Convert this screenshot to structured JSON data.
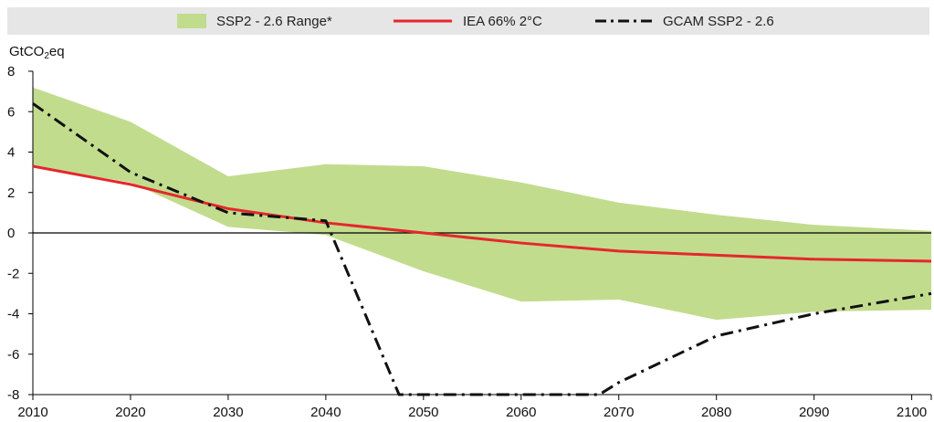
{
  "legend": {
    "range_label": "SSP2 - 2.6 Range*",
    "iea_label": "IEA 66% 2°C",
    "gcam_label": "GCAM SSP2 - 2.6"
  },
  "axis": {
    "ylabel_main": "GtCO",
    "ylabel_sub": "2",
    "ylabel_tail": "eq"
  },
  "colors": {
    "range": "#c2dc8e",
    "iea": "#e5272c",
    "gcam": "#111111",
    "legend_bg": "#e6e6e6"
  },
  "chart_data": {
    "type": "line",
    "title": "",
    "xlabel": "",
    "ylabel": "GtCO2eq",
    "xlim": [
      2010,
      2102
    ],
    "ylim": [
      -8,
      8
    ],
    "x_ticks": [
      2010,
      2020,
      2030,
      2040,
      2050,
      2060,
      2070,
      2080,
      2090,
      2100
    ],
    "y_ticks": [
      8,
      6,
      4,
      2,
      0,
      -2,
      -4,
      -6,
      -8
    ],
    "zero_line": true,
    "grid": false,
    "legend_position": "top",
    "range_band": {
      "name": "SSP2 - 2.6 Range*",
      "x": [
        2010,
        2020,
        2030,
        2040,
        2050,
        2060,
        2070,
        2080,
        2090,
        2102
      ],
      "upper": [
        7.2,
        5.5,
        2.8,
        3.4,
        3.3,
        2.5,
        1.5,
        0.9,
        0.4,
        0.1
      ],
      "lower": [
        3.3,
        2.5,
        0.3,
        -0.1,
        -1.9,
        -3.4,
        -3.3,
        -4.3,
        -3.9,
        -3.8
      ]
    },
    "series": [
      {
        "name": "IEA 66% 2°C",
        "style": "solid",
        "x": [
          2010,
          2020,
          2030,
          2040,
          2050,
          2060,
          2070,
          2080,
          2090,
          2102
        ],
        "y": [
          3.3,
          2.4,
          1.2,
          0.5,
          0.0,
          -0.5,
          -0.9,
          -1.1,
          -1.3,
          -1.4
        ]
      },
      {
        "name": "GCAM SSP2 - 2.6",
        "style": "dash-dot",
        "x": [
          2010,
          2020,
          2030,
          2040,
          2047.5,
          2050,
          2060,
          2068,
          2070,
          2080,
          2090,
          2102
        ],
        "y": [
          6.4,
          3.0,
          1.0,
          0.6,
          -8.0,
          -8.0,
          -8.0,
          -8.0,
          -7.4,
          -5.1,
          -4.0,
          -3.0
        ]
      }
    ]
  }
}
